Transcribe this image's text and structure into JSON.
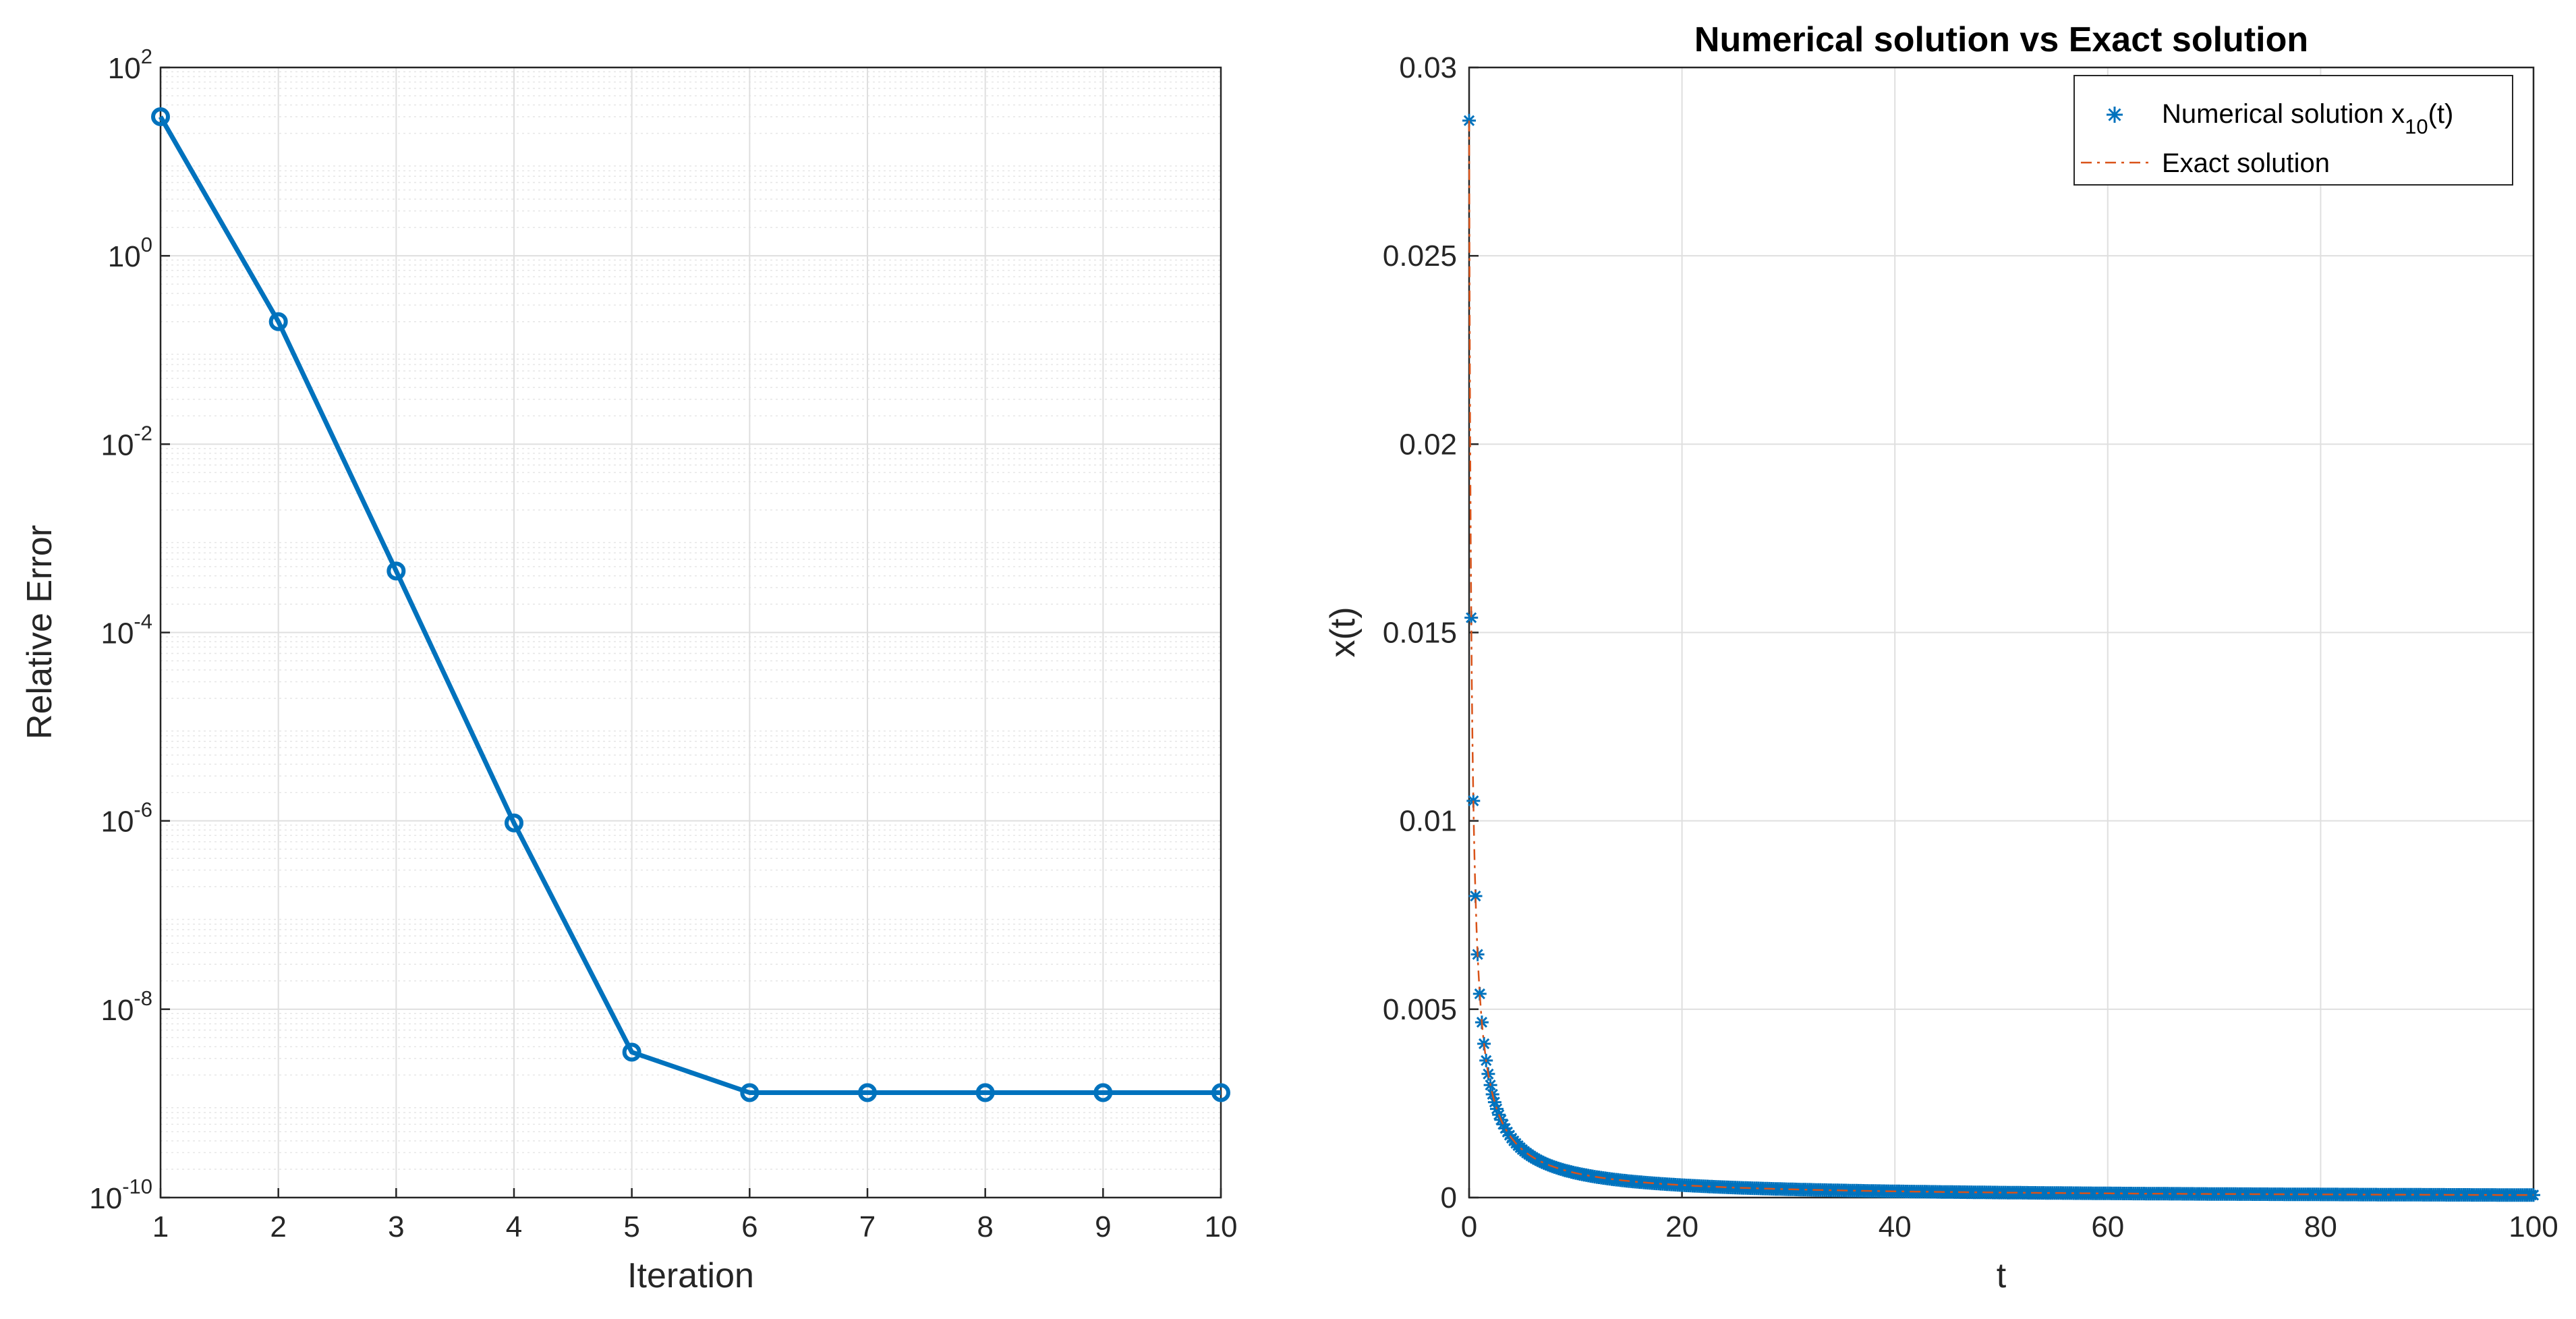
{
  "colors": {
    "series_blue": "#0072BD",
    "exact_orange": "#D95319",
    "axis": "#262626",
    "grid": "#DFDFDF",
    "minor_grid": "#E6E6E6"
  },
  "chart_data": [
    {
      "type": "line",
      "title": "",
      "xlabel": "Iteration",
      "ylabel": "Relative Error",
      "yscale": "log",
      "xlim": [
        1,
        10
      ],
      "ylim": [
        1e-10,
        100
      ],
      "grid": true,
      "minor_grid": true,
      "x_ticks": [
        "1",
        "2",
        "3",
        "4",
        "5",
        "6",
        "7",
        "8",
        "9",
        "10"
      ],
      "y_ticks": [
        {
          "base": "10",
          "exp": "-10",
          "value": 1e-10
        },
        {
          "base": "10",
          "exp": "-8",
          "value": 1e-08
        },
        {
          "base": "10",
          "exp": "-6",
          "value": 1e-06
        },
        {
          "base": "10",
          "exp": "-4",
          "value": 0.0001
        },
        {
          "base": "10",
          "exp": "-2",
          "value": 0.01
        },
        {
          "base": "10",
          "exp": "0",
          "value": 1
        },
        {
          "base": "10",
          "exp": "2",
          "value": 100
        }
      ],
      "series": [
        {
          "name": "Relative Error",
          "marker": "o",
          "x": [
            1,
            2,
            3,
            4,
            5,
            6,
            7,
            8,
            9,
            10
          ],
          "values": [
            30,
            0.2,
            0.00045,
            9.5e-07,
            3.5e-09,
            1.3e-09,
            1.3e-09,
            1.3e-09,
            1.3e-09,
            1.3e-09
          ]
        }
      ]
    },
    {
      "type": "scatter",
      "title": "Numerical solution vs Exact solution",
      "xlabel": "t",
      "ylabel": "x(t)",
      "xlim": [
        0,
        100
      ],
      "ylim": [
        0,
        0.03
      ],
      "grid": true,
      "x_ticks": [
        "0",
        "20",
        "40",
        "60",
        "80",
        "100"
      ],
      "y_ticks": [
        "0",
        "0.005",
        "0.01",
        "0.015",
        "0.02",
        "0.025",
        "0.03"
      ],
      "legend": {
        "location": "top-right",
        "entries": [
          {
            "label": "Numerical solution x",
            "subscript": "10",
            "suffix": "(t)",
            "marker": "*"
          },
          {
            "label": "Exact solution",
            "style": "dash-dot"
          }
        ]
      },
      "model": {
        "expression": "a / (t + b)",
        "a": 0.00667,
        "b": 0.2333
      },
      "series": [
        {
          "name": "Numerical solution x10(t)",
          "marker": "*",
          "t_start": 0,
          "t_end": 100,
          "step": 0.2
        },
        {
          "name": "Exact solution",
          "line": "dash-dot",
          "t_start": 0,
          "t_end": 100
        }
      ]
    }
  ]
}
